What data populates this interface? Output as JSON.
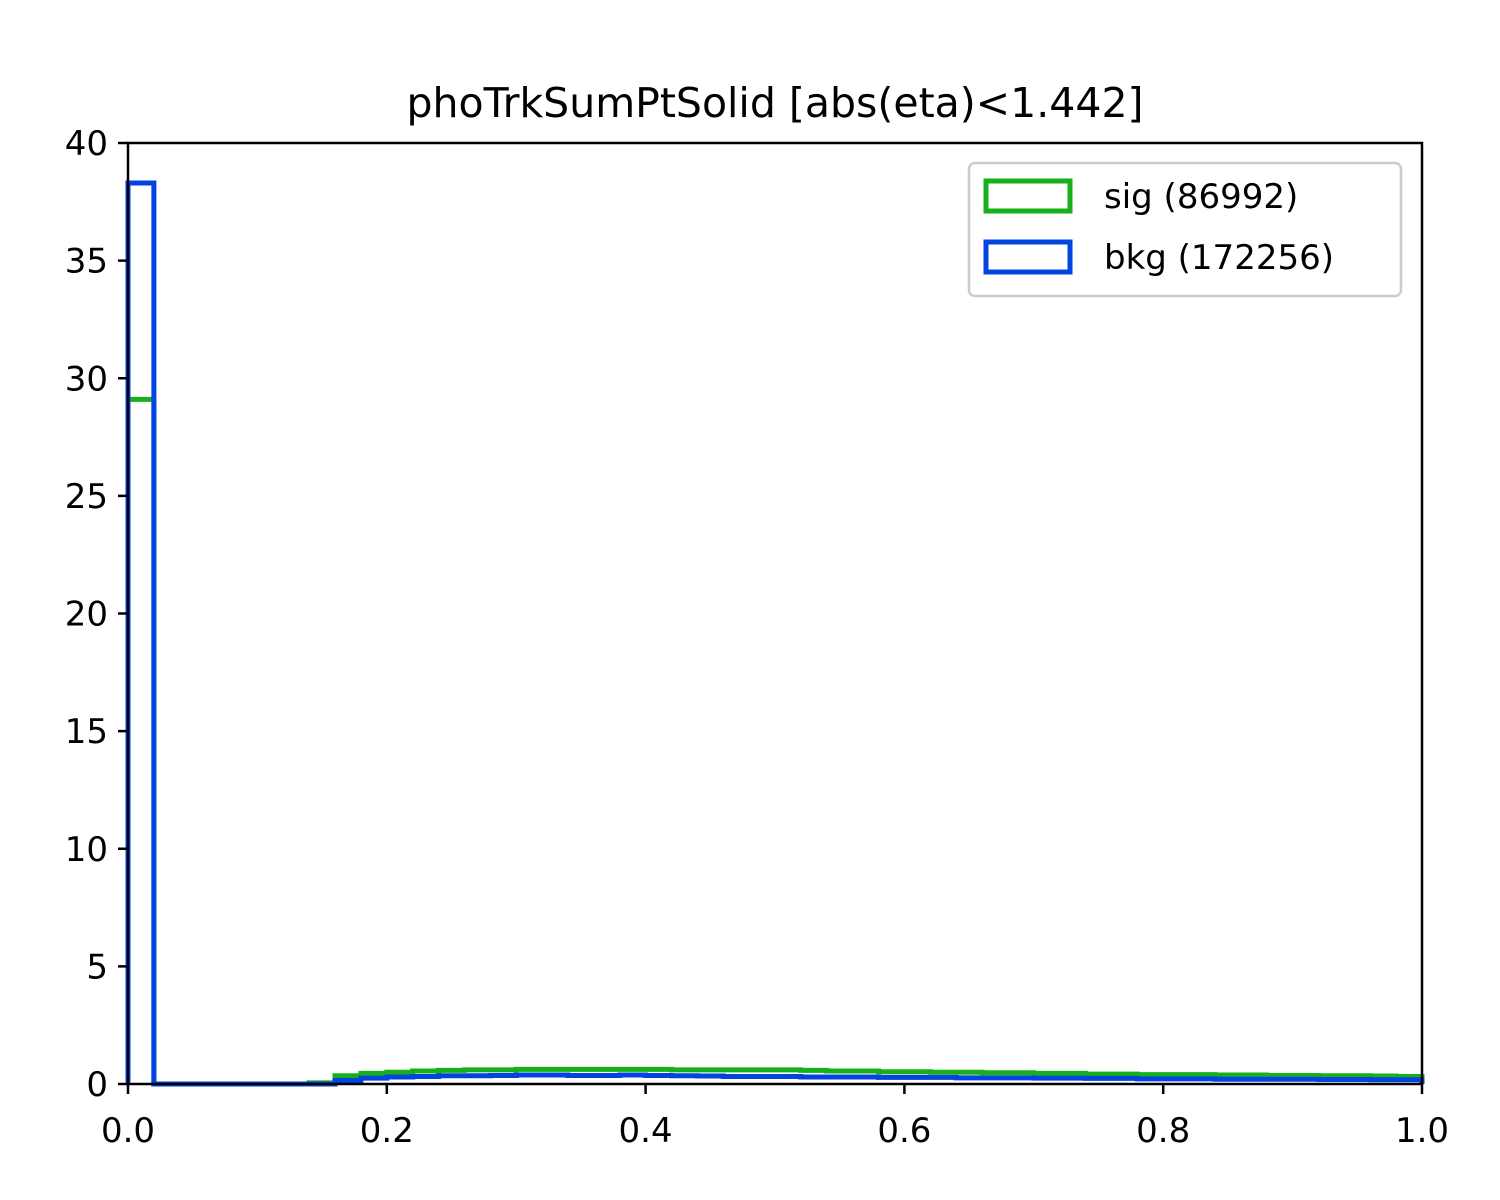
{
  "chart_data": {
    "type": "histogram",
    "title": "phoTrkSumPtSolid [abs(eta)<1.442]",
    "xlabel": "",
    "ylabel": "",
    "xlim": [
      0,
      1
    ],
    "ylim": [
      0,
      40
    ],
    "x_ticks": [
      "0.0",
      "0.2",
      "0.4",
      "0.6",
      "0.8",
      "1.0"
    ],
    "y_ticks": [
      "0",
      "5",
      "10",
      "15",
      "20",
      "25",
      "30",
      "35",
      "40"
    ],
    "grid": false,
    "legend_position": "upper right",
    "bin_edges": [
      0.0,
      0.02,
      0.04,
      0.06,
      0.08,
      0.1,
      0.12,
      0.14,
      0.16,
      0.18,
      0.2,
      0.22,
      0.24,
      0.26,
      0.28,
      0.3,
      0.32,
      0.34,
      0.36,
      0.38,
      0.4,
      0.42,
      0.44,
      0.46,
      0.48,
      0.5,
      0.52,
      0.54,
      0.56,
      0.58,
      0.6,
      0.62,
      0.64,
      0.66,
      0.68,
      0.7,
      0.72,
      0.74,
      0.76,
      0.78,
      0.8,
      0.82,
      0.84,
      0.86,
      0.88,
      0.9,
      0.92,
      0.94,
      0.96,
      0.98,
      1.0
    ],
    "series": [
      {
        "name": "sig (86992)",
        "color": "#15b01a",
        "values": [
          29.1,
          0,
          0,
          0,
          0,
          0,
          0,
          0.05,
          0.35,
          0.45,
          0.5,
          0.55,
          0.58,
          0.6,
          0.6,
          0.62,
          0.62,
          0.62,
          0.62,
          0.62,
          0.62,
          0.6,
          0.6,
          0.6,
          0.6,
          0.6,
          0.58,
          0.55,
          0.55,
          0.52,
          0.52,
          0.5,
          0.5,
          0.48,
          0.48,
          0.45,
          0.45,
          0.42,
          0.42,
          0.4,
          0.4,
          0.4,
          0.38,
          0.38,
          0.36,
          0.36,
          0.35,
          0.35,
          0.34,
          0.32
        ]
      },
      {
        "name": "bkg (172256)",
        "color": "#0343df",
        "values": [
          38.3,
          0,
          0,
          0,
          0,
          0,
          0,
          0,
          0.15,
          0.25,
          0.3,
          0.32,
          0.35,
          0.35,
          0.36,
          0.38,
          0.38,
          0.36,
          0.36,
          0.38,
          0.36,
          0.35,
          0.34,
          0.32,
          0.32,
          0.32,
          0.3,
          0.3,
          0.3,
          0.28,
          0.28,
          0.28,
          0.26,
          0.26,
          0.26,
          0.25,
          0.25,
          0.24,
          0.24,
          0.22,
          0.22,
          0.22,
          0.2,
          0.2,
          0.2,
          0.2,
          0.19,
          0.19,
          0.18,
          0.18
        ]
      }
    ]
  }
}
